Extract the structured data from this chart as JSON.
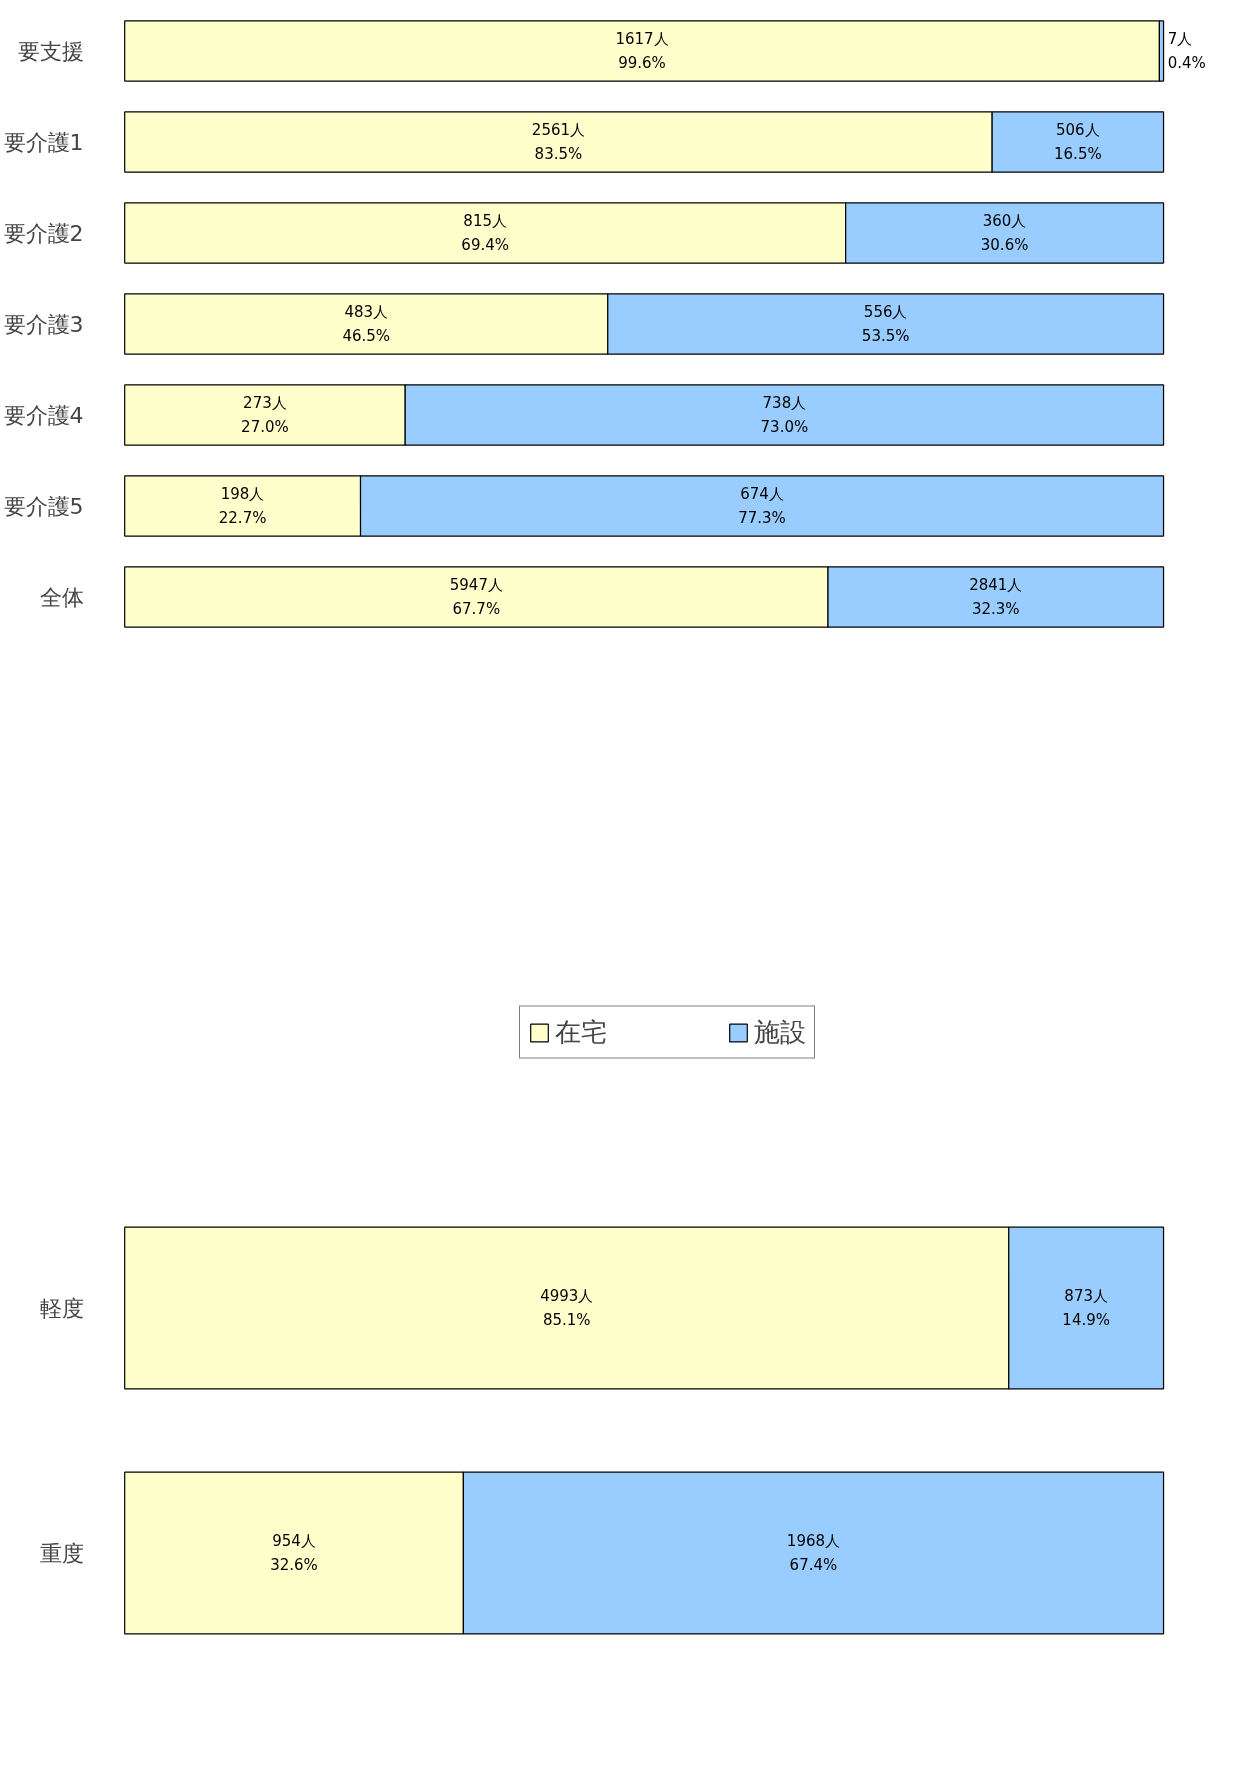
{
  "chart_data": [
    {
      "type": "bar",
      "orientation": "horizontal",
      "stacked": true,
      "legend": "bottom",
      "grid": false,
      "categories": [
        "要支援",
        "要介護1",
        "要介護2",
        "要介護3",
        "要介護4",
        "要介護5",
        "全体"
      ],
      "series": [
        {
          "name": "在宅",
          "color": "#ffffcc",
          "values": [
            99.6,
            83.5,
            69.4,
            46.5,
            27.0,
            22.7,
            67.7
          ],
          "value_labels": [
            "1617人\n99.6%",
            "2561人\n83.5%",
            "815人\n69.4%",
            "483人\n46.5%",
            "273人\n27.0%",
            "198人\n22.7%",
            "5947人\n67.7%"
          ]
        },
        {
          "name": "施設",
          "color": "#99ccff",
          "values": [
            0.4,
            16.5,
            30.6,
            53.5,
            73.0,
            77.3,
            32.3
          ],
          "value_labels": [
            "7人\n0.4%",
            "506人\n16.5%",
            "360人\n30.6%",
            "556人\n53.5%",
            "738人\n73.0%",
            "674人\n77.3%",
            "2841人\n32.3%"
          ]
        }
      ]
    },
    {
      "type": "bar",
      "orientation": "horizontal",
      "stacked": true,
      "grid": false,
      "categories": [
        "軽度",
        "重度"
      ],
      "series": [
        {
          "color": "#ffffcc",
          "values": [
            85.1,
            32.6
          ],
          "value_labels": [
            "4993人\n85.1%",
            "954人\n32.6%"
          ]
        },
        {
          "color": "#99ccff",
          "values": [
            14.9,
            67.4
          ],
          "value_labels": [
            "873人\n14.9%",
            "1968人\n67.4%"
          ]
        }
      ]
    }
  ]
}
